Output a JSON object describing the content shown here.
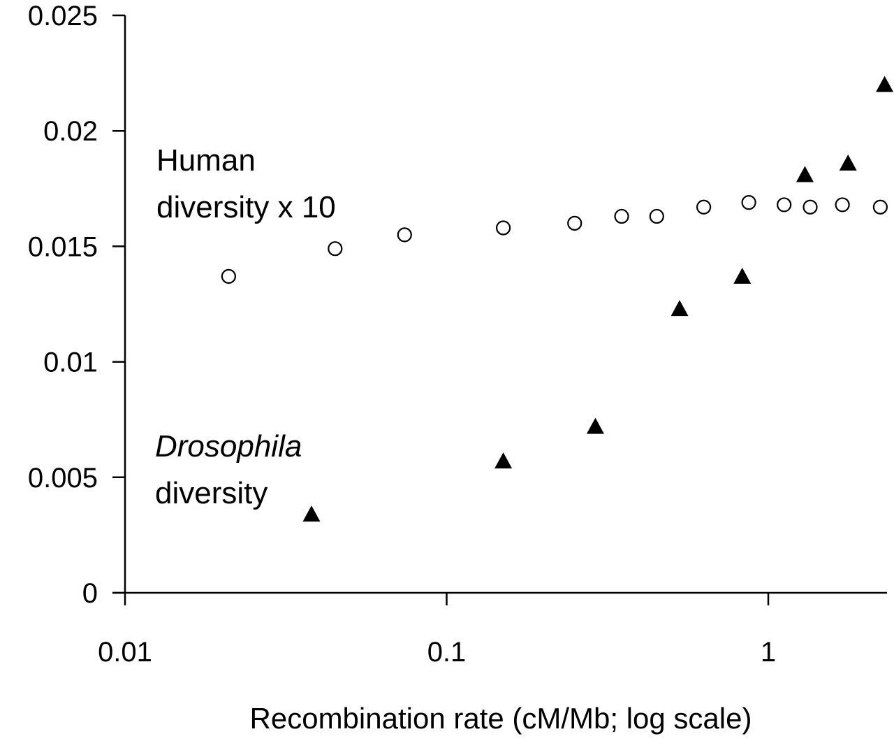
{
  "chart_data": {
    "type": "scatter",
    "title": "",
    "xlabel": "Recombination rate (cM/Mb; log scale)",
    "ylabel": "",
    "x_scale": "log",
    "xlim": [
      0.01,
      2.35
    ],
    "ylim": [
      0,
      0.025
    ],
    "grid": false,
    "x_ticks": [
      "0.01",
      "0.1",
      "1"
    ],
    "y_ticks": [
      "0",
      "0.005",
      "0.01",
      "0.015",
      "0.02",
      "0.025"
    ],
    "annotations": {
      "human_line1": "Human",
      "human_line2": "diversity x 10",
      "dros_line1": "Drosophila",
      "dros_line2": "diversity"
    },
    "series": [
      {
        "marker": "open-circle",
        "points": [
          {
            "x": 0.021,
            "y": 0.0137
          },
          {
            "x": 0.045,
            "y": 0.0149
          },
          {
            "x": 0.074,
            "y": 0.0155
          },
          {
            "x": 0.15,
            "y": 0.0158
          },
          {
            "x": 0.25,
            "y": 0.016
          },
          {
            "x": 0.35,
            "y": 0.0163
          },
          {
            "x": 0.45,
            "y": 0.0163
          },
          {
            "x": 0.63,
            "y": 0.0167
          },
          {
            "x": 0.87,
            "y": 0.0169
          },
          {
            "x": 1.12,
            "y": 0.0168
          },
          {
            "x": 1.35,
            "y": 0.0167
          },
          {
            "x": 1.7,
            "y": 0.0168
          },
          {
            "x": 2.23,
            "y": 0.0167
          }
        ]
      },
      {
        "marker": "filled-triangle",
        "points": [
          {
            "x": 0.038,
            "y": 0.0034
          },
          {
            "x": 0.15,
            "y": 0.0057
          },
          {
            "x": 0.29,
            "y": 0.0072
          },
          {
            "x": 0.53,
            "y": 0.0123
          },
          {
            "x": 0.83,
            "y": 0.0137
          },
          {
            "x": 1.3,
            "y": 0.0181
          },
          {
            "x": 1.77,
            "y": 0.0186
          },
          {
            "x": 2.3,
            "y": 0.022
          }
        ]
      }
    ]
  }
}
